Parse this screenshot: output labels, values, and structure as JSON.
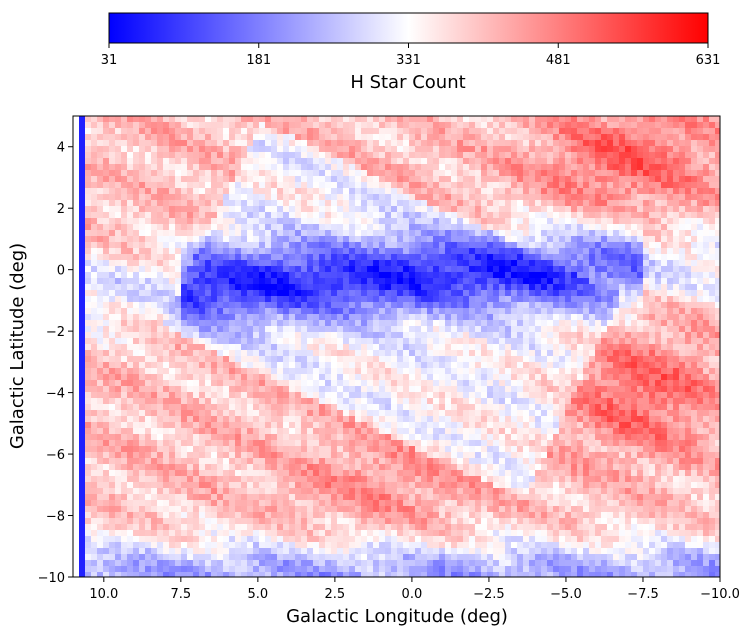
{
  "chart_data": {
    "type": "heatmap",
    "title": "",
    "xlabel": "Galactic Longitude (deg)",
    "ylabel": "Galactic Latitude (deg)",
    "xlim": [
      11,
      -10
    ],
    "ylim": [
      -10,
      5
    ],
    "x_ticks": [
      10.0,
      7.5,
      5.0,
      2.5,
      0.0,
      -2.5,
      -5.0,
      -7.5,
      -10.0
    ],
    "x_tick_labels": [
      "10.0",
      "7.5",
      "5.0",
      "2.5",
      "0.0",
      "−2.5",
      "−5.0",
      "−7.5",
      "−10.0"
    ],
    "y_ticks": [
      4,
      2,
      0,
      -2,
      -4,
      -6,
      -8,
      -10
    ],
    "y_tick_labels": [
      "4",
      "2",
      "0",
      "−2",
      "−4",
      "−6",
      "−8",
      "−10"
    ],
    "colorbar": {
      "label": "H Star Count",
      "colormap": "bwr",
      "range": [
        31,
        631
      ],
      "ticks": [
        31,
        181,
        331,
        481,
        631
      ],
      "tick_labels": [
        "31",
        "181",
        "331",
        "481",
        "631"
      ],
      "orientation": "horizontal",
      "position": "top"
    },
    "grid": false,
    "description_of_pattern": []
  },
  "colors": {
    "low": "#0000ff",
    "mid": "#ffffff",
    "high": "#ff0000"
  }
}
